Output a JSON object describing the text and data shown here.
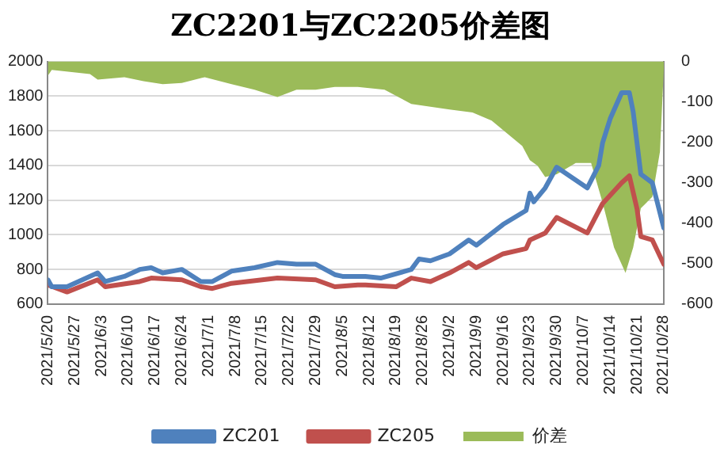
{
  "chart_data": {
    "type": "line",
    "title": "ZC2201与ZC2205价差图",
    "xlim": [
      "2021-05-20",
      "2021-10-28"
    ],
    "xticks": [
      {
        "value": "2021-05-20",
        "label": "2021/5/20"
      },
      {
        "value": "2021-05-27",
        "label": "2021/5/27"
      },
      {
        "value": "2021-06-03",
        "label": "2021/6/3"
      },
      {
        "value": "2021-06-10",
        "label": "2021/6/10"
      },
      {
        "value": "2021-06-17",
        "label": "2021/6/17"
      },
      {
        "value": "2021-06-24",
        "label": "2021/6/24"
      },
      {
        "value": "2021-07-01",
        "label": "2021/7/1"
      },
      {
        "value": "2021-07-08",
        "label": "2021/7/8"
      },
      {
        "value": "2021-07-15",
        "label": "2021/7/15"
      },
      {
        "value": "2021-07-22",
        "label": "2021/7/22"
      },
      {
        "value": "2021-07-29",
        "label": "2021/7/29"
      },
      {
        "value": "2021-08-05",
        "label": "2021/8/5"
      },
      {
        "value": "2021-08-12",
        "label": "2021/8/12"
      },
      {
        "value": "2021-08-19",
        "label": "2021/8/19"
      },
      {
        "value": "2021-08-26",
        "label": "2021/8/26"
      },
      {
        "value": "2021-09-02",
        "label": "2021/9/2"
      },
      {
        "value": "2021-09-09",
        "label": "2021/9/9"
      },
      {
        "value": "2021-09-16",
        "label": "2021/9/16"
      },
      {
        "value": "2021-09-23",
        "label": "2021/9/23"
      },
      {
        "value": "2021-09-30",
        "label": "2021/9/30"
      },
      {
        "value": "2021-10-07",
        "label": "2021/10/7"
      },
      {
        "value": "2021-10-14",
        "label": "2021/10/14"
      },
      {
        "value": "2021-10-21",
        "label": "2021/10/21"
      },
      {
        "value": "2021-10-28",
        "label": "2021/10/28"
      }
    ],
    "ylim": [
      600,
      2000
    ],
    "yticks": [
      600,
      800,
      1000,
      1200,
      1400,
      1600,
      1800,
      2000
    ],
    "y2lim": [
      -600,
      0
    ],
    "y2ticks": [
      -600,
      -500,
      -400,
      -300,
      -200,
      -100,
      0
    ],
    "grid": "y",
    "legend": "bottom",
    "marker": "none",
    "series": [
      {
        "name": "价差",
        "type": "area",
        "axis": "y2",
        "color": "#9bbb59",
        "x": [
          "2021-05-20",
          "2021-05-21",
          "2021-05-31",
          "2021-06-02",
          "2021-06-09",
          "2021-06-14",
          "2021-06-19",
          "2021-06-24",
          "2021-06-30",
          "2021-07-07",
          "2021-07-13",
          "2021-07-19",
          "2021-07-24",
          "2021-07-29",
          "2021-08-03",
          "2021-08-09",
          "2021-08-16",
          "2021-08-23",
          "2021-09-02",
          "2021-09-08",
          "2021-09-13",
          "2021-09-21",
          "2021-09-23",
          "2021-09-25",
          "2021-09-27",
          "2021-09-30",
          "2021-10-05",
          "2021-10-09",
          "2021-10-12",
          "2021-10-15",
          "2021-10-18",
          "2021-10-20",
          "2021-10-22",
          "2021-10-25",
          "2021-10-27",
          "2021-10-28"
        ],
        "values": [
          -35,
          -21,
          -31,
          -45,
          -39,
          -49,
          -56,
          -53,
          -39,
          -56,
          -70,
          -88,
          -70,
          -70,
          -63,
          -63,
          -70,
          -105,
          -119,
          -126,
          -146,
          -209,
          -244,
          -258,
          -286,
          -279,
          -251,
          -251,
          -349,
          -460,
          -523,
          -460,
          -363,
          -335,
          -223,
          -20
        ]
      },
      {
        "name": "ZC201",
        "type": "line",
        "color": "#4f81bd",
        "x": [
          "2021-05-20",
          "2021-05-21",
          "2021-05-25",
          "2021-06-02",
          "2021-06-04",
          "2021-06-09",
          "2021-06-13",
          "2021-06-16",
          "2021-06-19",
          "2021-06-24",
          "2021-06-29",
          "2021-07-02",
          "2021-07-07",
          "2021-07-13",
          "2021-07-19",
          "2021-07-24",
          "2021-07-29",
          "2021-08-03",
          "2021-08-05",
          "2021-08-11",
          "2021-08-15",
          "2021-08-23",
          "2021-08-25",
          "2021-08-28",
          "2021-09-02",
          "2021-09-07",
          "2021-09-09",
          "2021-09-16",
          "2021-09-22",
          "2021-09-23",
          "2021-09-24",
          "2021-09-27",
          "2021-09-30",
          "2021-10-08",
          "2021-10-11",
          "2021-10-12",
          "2021-10-14",
          "2021-10-17",
          "2021-10-19",
          "2021-10-20",
          "2021-10-22",
          "2021-10-25",
          "2021-10-28"
        ],
        "values": [
          740,
          700,
          700,
          780,
          730,
          760,
          800,
          810,
          780,
          800,
          730,
          730,
          790,
          810,
          840,
          830,
          830,
          770,
          760,
          760,
          750,
          800,
          860,
          850,
          890,
          970,
          940,
          1060,
          1140,
          1240,
          1190,
          1270,
          1390,
          1270,
          1400,
          1530,
          1670,
          1820,
          1820,
          1710,
          1350,
          1300,
          1040
        ]
      },
      {
        "name": "ZC205",
        "type": "line",
        "color": "#c0504d",
        "x": [
          "2021-05-20",
          "2021-05-25",
          "2021-06-02",
          "2021-06-04",
          "2021-06-13",
          "2021-06-16",
          "2021-06-24",
          "2021-06-29",
          "2021-07-02",
          "2021-07-07",
          "2021-07-19",
          "2021-07-29",
          "2021-08-03",
          "2021-08-09",
          "2021-08-11",
          "2021-08-19",
          "2021-08-23",
          "2021-08-28",
          "2021-09-02",
          "2021-09-07",
          "2021-09-09",
          "2021-09-16",
          "2021-09-22",
          "2021-09-23",
          "2021-09-27",
          "2021-09-30",
          "2021-10-08",
          "2021-10-12",
          "2021-10-17",
          "2021-10-19",
          "2021-10-21",
          "2021-10-22",
          "2021-10-25",
          "2021-10-28"
        ],
        "values": [
          710,
          670,
          740,
          700,
          730,
          750,
          740,
          700,
          690,
          720,
          750,
          740,
          700,
          710,
          710,
          700,
          750,
          730,
          780,
          840,
          810,
          890,
          920,
          970,
          1010,
          1100,
          1010,
          1180,
          1300,
          1340,
          1150,
          990,
          970,
          830
        ]
      }
    ]
  }
}
